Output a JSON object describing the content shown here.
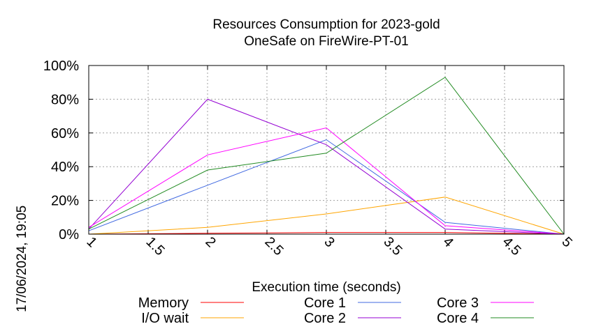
{
  "chart_data": {
    "type": "line",
    "title": "Resources Consumption for 2023-gold",
    "subtitle": "OneSafe on FireWire-PT-01",
    "xlabel": "Execution time (seconds)",
    "ylabel": "",
    "xlim": [
      1,
      5
    ],
    "ylim": [
      0,
      100
    ],
    "x_ticks": [
      "1",
      "1.5",
      "2",
      "2.5",
      "3",
      "3.5",
      "4",
      "4.5",
      "5"
    ],
    "y_ticks": [
      "0%",
      "20%",
      "40%",
      "60%",
      "80%",
      "100%"
    ],
    "grid": true,
    "legend_position": "bottom",
    "x": [
      1,
      2,
      3,
      4,
      5
    ],
    "series": [
      {
        "name": "Memory",
        "color": "#ff0000",
        "values": [
          0,
          0.5,
          1,
          1,
          0
        ]
      },
      {
        "name": "I/O wait",
        "color": "#ffa500",
        "values": [
          0,
          4,
          12,
          22,
          0
        ]
      },
      {
        "name": "Core 1",
        "color": "#4169e1",
        "values": [
          2,
          29,
          56,
          7,
          0
        ]
      },
      {
        "name": "Core 2",
        "color": "#9400d3",
        "values": [
          3,
          80,
          53,
          3,
          0
        ]
      },
      {
        "name": "Core 3",
        "color": "#ff00ff",
        "values": [
          4,
          47,
          63,
          5,
          0
        ]
      },
      {
        "name": "Core 4",
        "color": "#228b22",
        "values": [
          3,
          38,
          48,
          93,
          0
        ]
      }
    ]
  },
  "timestamp": "17/06/2024, 19:05"
}
